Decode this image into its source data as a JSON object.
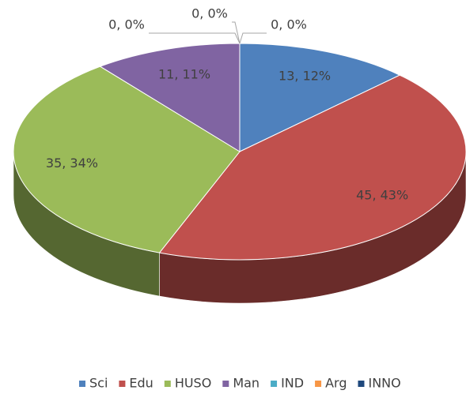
{
  "chart_data": {
    "type": "pie3d",
    "categories": [
      "Sci",
      "Edu",
      "HUSO",
      "Man",
      "IND",
      "Arg",
      "INNO"
    ],
    "values": [
      13,
      45,
      35,
      11,
      0,
      0,
      0
    ],
    "value_labels": [
      "13, 12%",
      "45, 43%",
      "35, 34%",
      "11, 11%",
      "0, 0%",
      "0, 0%",
      "0, 0%"
    ],
    "colors": [
      "#4f81bd",
      "#c0504d",
      "#9bbb59",
      "#8064a2",
      "#4bacc6",
      "#f79646",
      "#1f497d"
    ],
    "legend": "bottom"
  }
}
